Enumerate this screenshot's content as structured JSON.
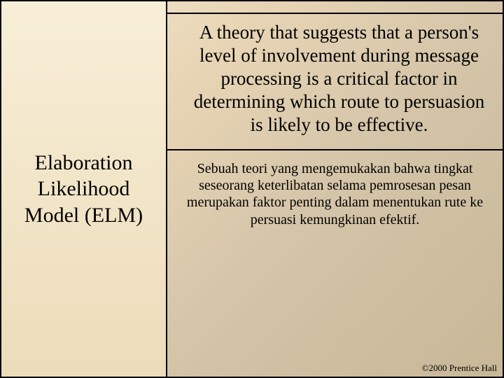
{
  "left": {
    "title": "Elaboration Likelihood Model (ELM)"
  },
  "right": {
    "definition": "A theory that suggests that a person's level of involvement during message processing is a critical factor in determining which route to persuasion is likely to be effective.",
    "translation": "Sebuah teori yang mengemukakan bahwa tingkat seseorang keterlibatan selama pemrosesan pesan merupakan faktor penting dalam menentukan rute ke persuasi kemungkinan efektif."
  },
  "footer": {
    "copyright": "©2000 Prentice Hall"
  },
  "style": {
    "slide_width": 720,
    "slide_height": 540,
    "left_panel_width": 235,
    "border_color": "#000000",
    "border_width": 2,
    "bg_gradient_stops": [
      "#f5e8d0",
      "#e8d5b5",
      "#d4c4a8",
      "#c8b898"
    ],
    "left_bg_gradient_stops": [
      "#f8efd8",
      "#f2e5c8",
      "#ecdcba"
    ],
    "font_family": "Times New Roman",
    "title_fontsize": 30,
    "definition_fontsize": 27,
    "translation_fontsize": 20,
    "copyright_fontsize": 13,
    "text_color": "#000000"
  }
}
